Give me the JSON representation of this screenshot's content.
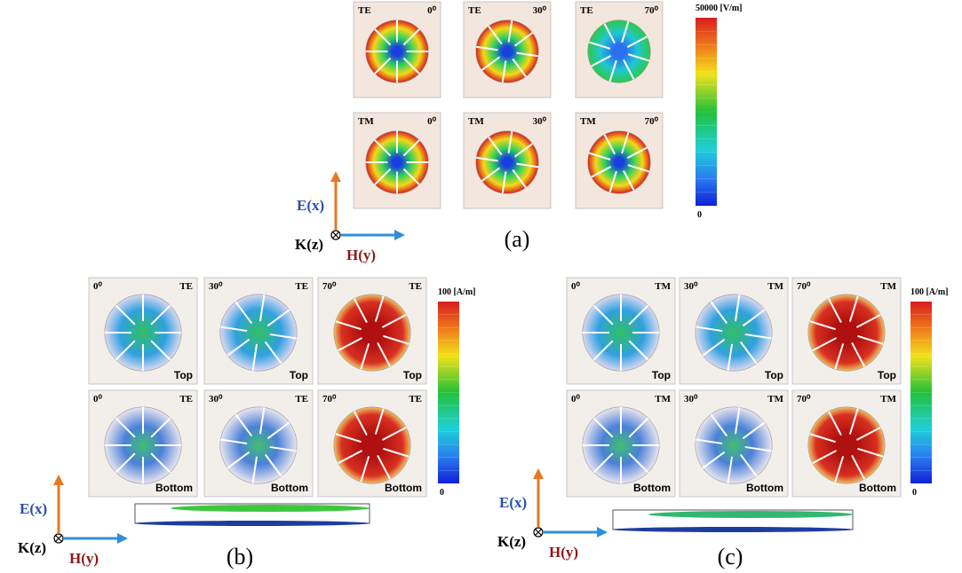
{
  "panels": [
    {
      "caption": "(a)",
      "colorbar": {
        "max_label": "50000 [V/m]",
        "min_label": "0"
      },
      "axes": {
        "e": "E(x)",
        "k": "K(z)",
        "h": "H(y)"
      },
      "cells": [
        {
          "mode": "TE",
          "angle": "0⁰"
        },
        {
          "mode": "TE",
          "angle": "30⁰"
        },
        {
          "mode": "TE",
          "angle": "70⁰"
        },
        {
          "mode": "TM",
          "angle": "0⁰"
        },
        {
          "mode": "TM",
          "angle": "30⁰"
        },
        {
          "mode": "TM",
          "angle": "70⁰"
        }
      ]
    },
    {
      "caption": "(b)",
      "colorbar": {
        "max_label": "100 [A/m]",
        "min_label": "0"
      },
      "axes": {
        "e": "E(x)",
        "k": "K(z)",
        "h": "H(y)"
      },
      "cells": [
        {
          "mode": "TE",
          "angle": "0⁰",
          "position": "Top"
        },
        {
          "mode": "TE",
          "angle": "30⁰",
          "position": "Top"
        },
        {
          "mode": "TE",
          "angle": "70⁰",
          "position": "Top"
        },
        {
          "mode": "TE",
          "angle": "0⁰",
          "position": "Bottom"
        },
        {
          "mode": "TE",
          "angle": "30⁰",
          "position": "Bottom"
        },
        {
          "mode": "TE",
          "angle": "70⁰",
          "position": "Bottom"
        }
      ]
    },
    {
      "caption": "(c)",
      "colorbar": {
        "max_label": "100 [A/m]",
        "min_label": "0"
      },
      "axes": {
        "e": "E(x)",
        "k": "K(z)",
        "h": "H(y)"
      },
      "cells": [
        {
          "mode": "TM",
          "angle": "0⁰",
          "position": "Top"
        },
        {
          "mode": "TM",
          "angle": "30⁰",
          "position": "Top"
        },
        {
          "mode": "TM",
          "angle": "70⁰",
          "position": "Top"
        },
        {
          "mode": "TM",
          "angle": "0⁰",
          "position": "Bottom"
        },
        {
          "mode": "TM",
          "angle": "30⁰",
          "position": "Bottom"
        },
        {
          "mode": "TM",
          "angle": "70⁰",
          "position": "Bottom"
        }
      ]
    }
  ]
}
